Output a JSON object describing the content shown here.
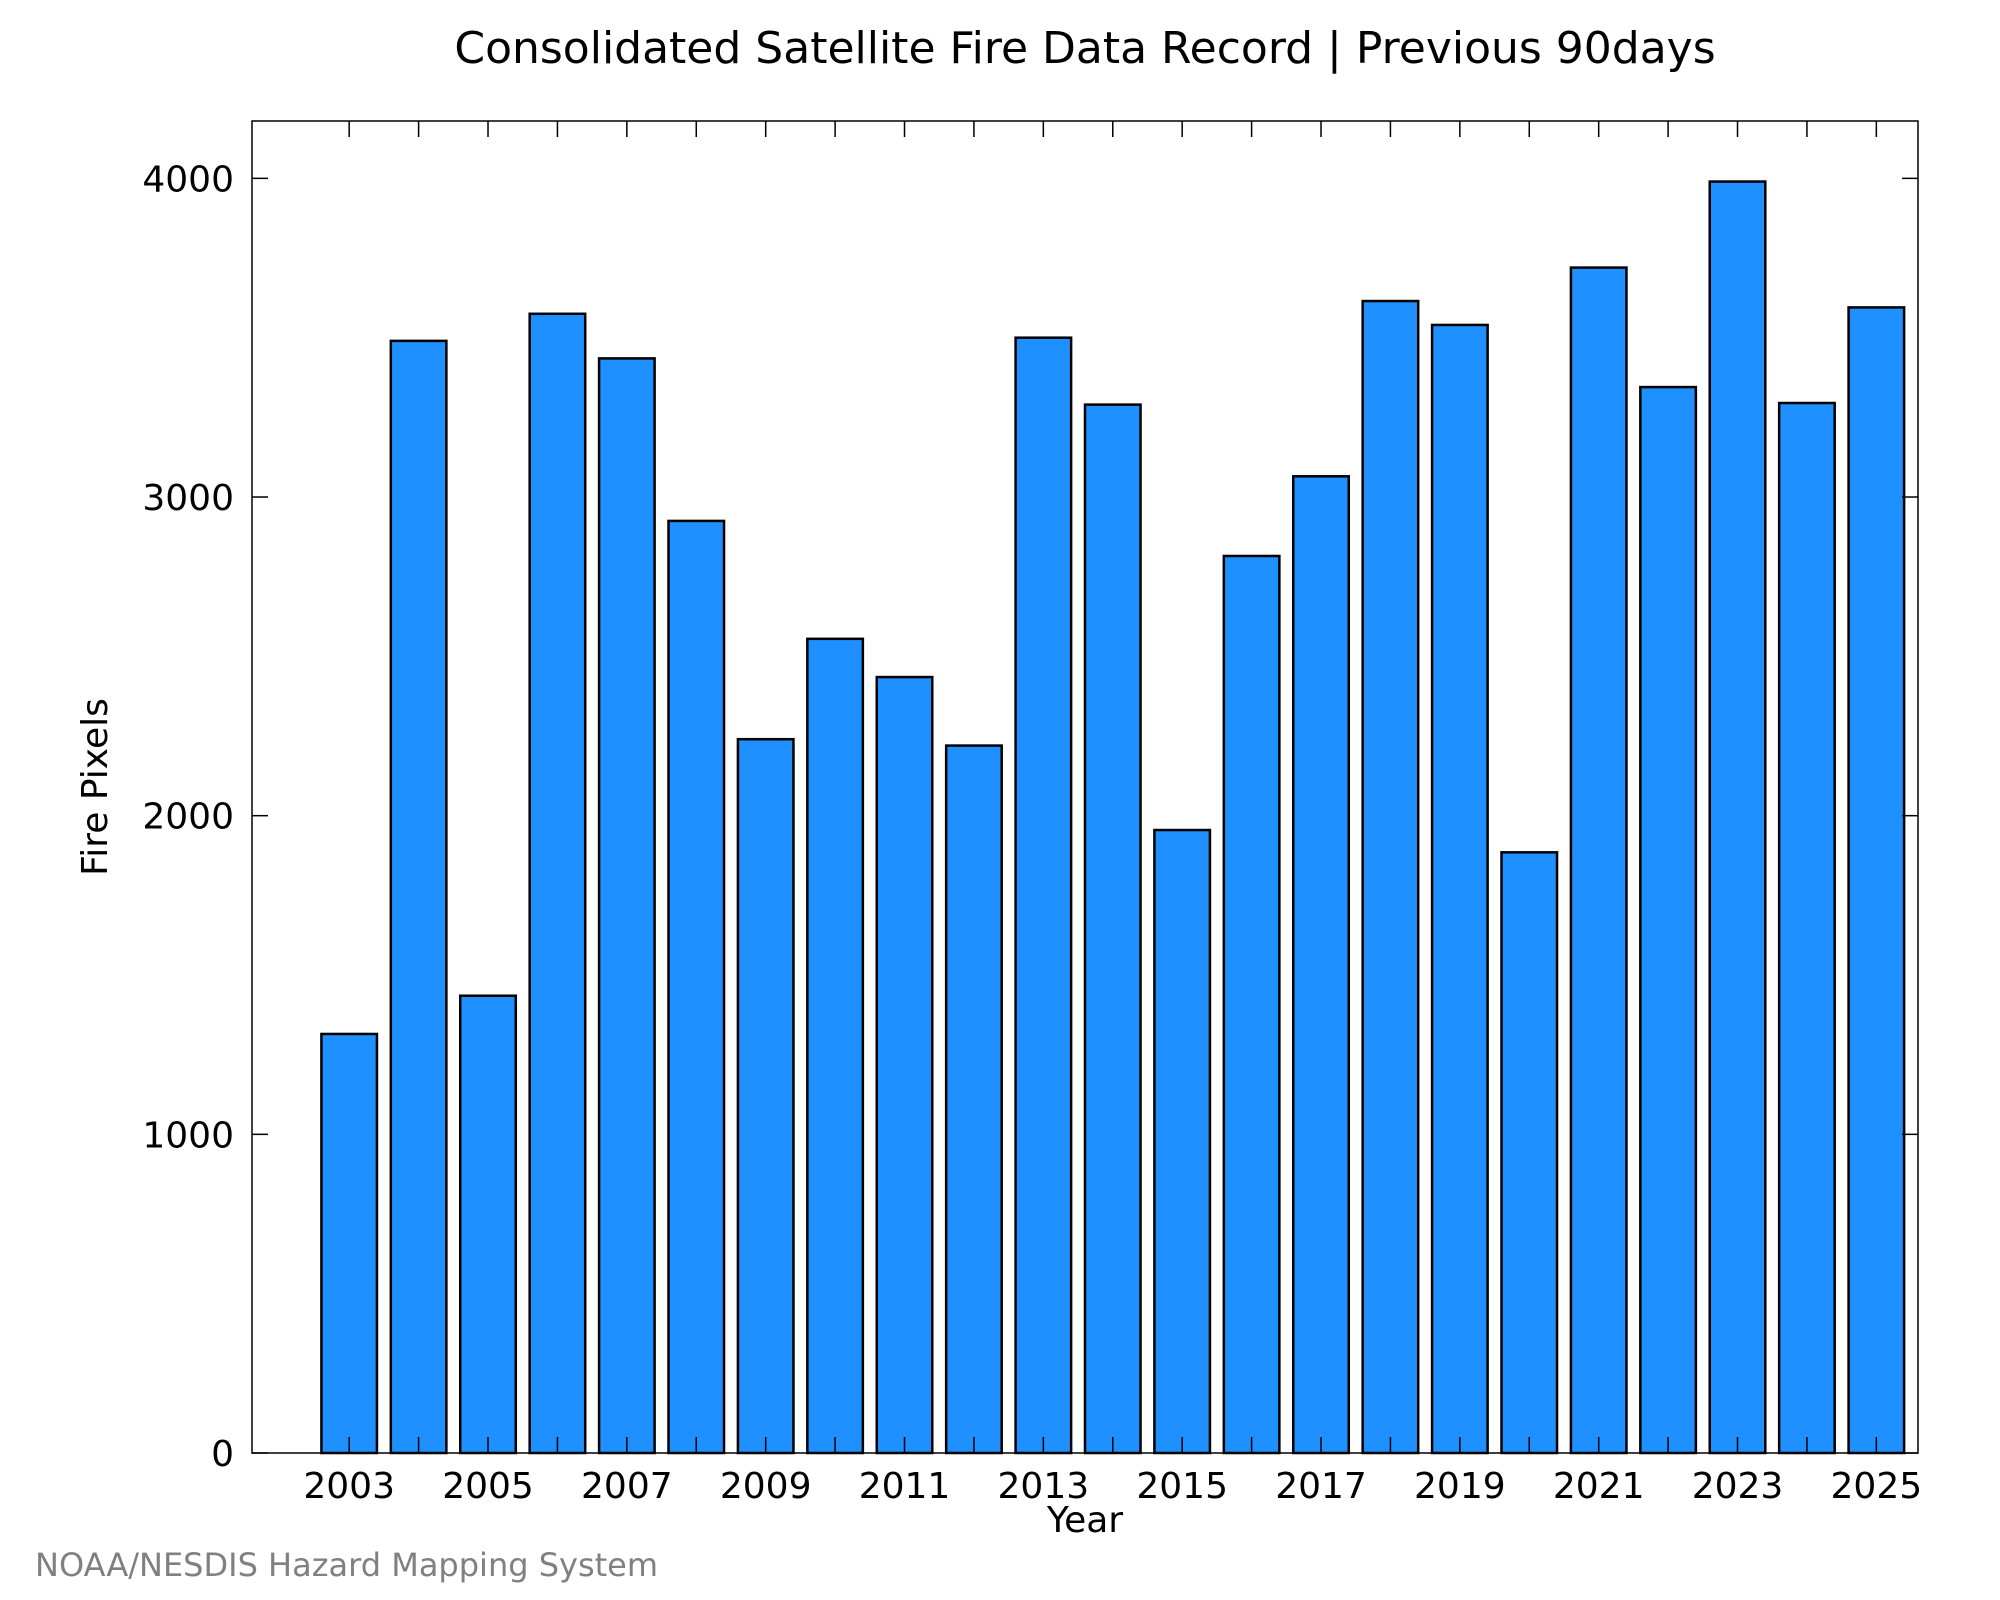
{
  "credit": "NOAA/NESDIS Hazard Mapping System",
  "colors": {
    "bar_fill": "#1e90ff",
    "bar_stroke": "#000000",
    "credit": "#808080"
  },
  "chart_data": {
    "type": "bar",
    "title": "Consolidated Satellite Fire Data Record | Previous 90days",
    "xlabel": "Year",
    "ylabel": "Fire Pixels",
    "categories": [
      2003,
      2004,
      2005,
      2006,
      2007,
      2008,
      2009,
      2010,
      2011,
      2012,
      2013,
      2014,
      2015,
      2016,
      2017,
      2018,
      2019,
      2020,
      2021,
      2022,
      2023,
      2024,
      2025
    ],
    "values": [
      1315,
      3490,
      1435,
      3575,
      3435,
      2925,
      2240,
      2555,
      2435,
      2220,
      3500,
      3290,
      1955,
      2815,
      3065,
      3615,
      3540,
      1885,
      3720,
      3345,
      3990,
      3295,
      3595
    ],
    "ylim": [
      0,
      4180
    ],
    "xlim": [
      2001.6,
      2025.6
    ],
    "yticks": [
      0,
      1000,
      2000,
      3000,
      4000
    ],
    "xticks_labeled": [
      2003,
      2005,
      2007,
      2009,
      2011,
      2013,
      2015,
      2017,
      2019,
      2021,
      2023,
      2025
    ],
    "xticks_minor": [
      2004,
      2006,
      2008,
      2010,
      2012,
      2014,
      2016,
      2018,
      2020,
      2022,
      2024
    ],
    "grid": false,
    "legend": "none"
  }
}
